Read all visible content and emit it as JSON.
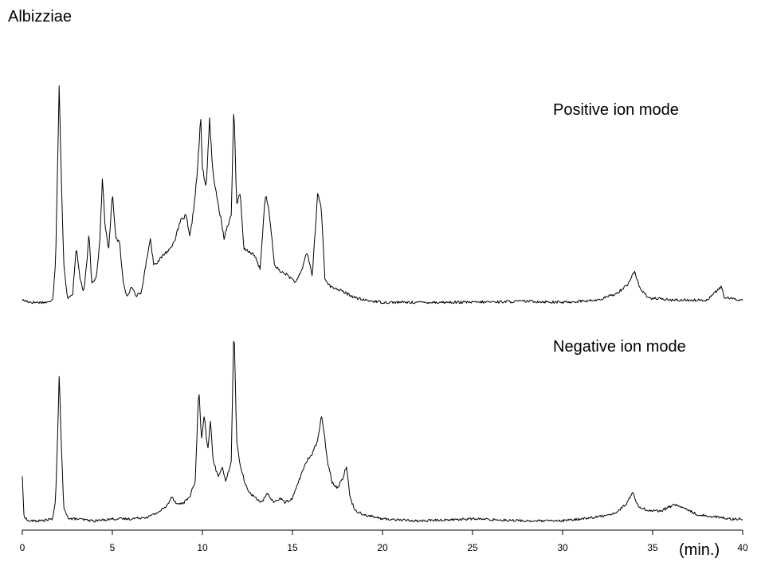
{
  "chart_data": {
    "type": "line",
    "title": "Albizziae",
    "xlabel": "(min.)",
    "ylabel": "",
    "xlim": [
      0,
      40
    ],
    "x_ticks": [
      "0",
      "5",
      "10",
      "15",
      "20",
      "25",
      "30",
      "35",
      "40"
    ],
    "grid": false,
    "series": [
      {
        "name": "Positive ion mode",
        "relative_intensity": true,
        "points": [
          [
            0.0,
            0.02
          ],
          [
            0.5,
            0.01
          ],
          [
            1.0,
            0.01
          ],
          [
            1.5,
            0.01
          ],
          [
            1.7,
            0.03
          ],
          [
            1.85,
            0.2
          ],
          [
            1.95,
            0.6
          ],
          [
            2.05,
            1.0
          ],
          [
            2.15,
            0.62
          ],
          [
            2.3,
            0.18
          ],
          [
            2.5,
            0.03
          ],
          [
            2.8,
            0.05
          ],
          [
            3.0,
            0.26
          ],
          [
            3.2,
            0.12
          ],
          [
            3.4,
            0.05
          ],
          [
            3.6,
            0.2
          ],
          [
            3.7,
            0.33
          ],
          [
            3.85,
            0.1
          ],
          [
            4.1,
            0.12
          ],
          [
            4.3,
            0.28
          ],
          [
            4.45,
            0.57
          ],
          [
            4.6,
            0.35
          ],
          [
            4.8,
            0.25
          ],
          [
            5.0,
            0.5
          ],
          [
            5.2,
            0.3
          ],
          [
            5.4,
            0.28
          ],
          [
            5.6,
            0.1
          ],
          [
            5.8,
            0.04
          ],
          [
            6.1,
            0.08
          ],
          [
            6.3,
            0.04
          ],
          [
            6.6,
            0.05
          ],
          [
            6.9,
            0.2
          ],
          [
            7.1,
            0.3
          ],
          [
            7.3,
            0.18
          ],
          [
            7.6,
            0.2
          ],
          [
            7.9,
            0.23
          ],
          [
            8.2,
            0.25
          ],
          [
            8.5,
            0.3
          ],
          [
            8.8,
            0.38
          ],
          [
            9.1,
            0.4
          ],
          [
            9.3,
            0.3
          ],
          [
            9.5,
            0.42
          ],
          [
            9.7,
            0.58
          ],
          [
            9.8,
            0.7
          ],
          [
            9.9,
            0.85
          ],
          [
            10.0,
            0.62
          ],
          [
            10.2,
            0.52
          ],
          [
            10.4,
            0.84
          ],
          [
            10.55,
            0.62
          ],
          [
            10.8,
            0.48
          ],
          [
            11.0,
            0.4
          ],
          [
            11.2,
            0.3
          ],
          [
            11.4,
            0.36
          ],
          [
            11.6,
            0.4
          ],
          [
            11.75,
            0.91
          ],
          [
            11.9,
            0.45
          ],
          [
            12.1,
            0.5
          ],
          [
            12.3,
            0.25
          ],
          [
            12.6,
            0.24
          ],
          [
            12.9,
            0.22
          ],
          [
            13.2,
            0.16
          ],
          [
            13.5,
            0.5
          ],
          [
            13.7,
            0.42
          ],
          [
            14.0,
            0.18
          ],
          [
            14.3,
            0.15
          ],
          [
            14.6,
            0.14
          ],
          [
            14.9,
            0.12
          ],
          [
            15.2,
            0.1
          ],
          [
            15.5,
            0.15
          ],
          [
            15.8,
            0.24
          ],
          [
            16.1,
            0.13
          ],
          [
            16.4,
            0.5
          ],
          [
            16.6,
            0.44
          ],
          [
            16.8,
            0.12
          ],
          [
            17.1,
            0.08
          ],
          [
            17.5,
            0.07
          ],
          [
            18.0,
            0.05
          ],
          [
            18.5,
            0.03
          ],
          [
            19.0,
            0.02
          ],
          [
            20.0,
            0.01
          ],
          [
            22.0,
            0.01
          ],
          [
            25.0,
            0.01
          ],
          [
            28.0,
            0.015
          ],
          [
            30.0,
            0.01
          ],
          [
            32.0,
            0.02
          ],
          [
            33.0,
            0.05
          ],
          [
            33.6,
            0.09
          ],
          [
            34.0,
            0.15
          ],
          [
            34.3,
            0.07
          ],
          [
            34.8,
            0.03
          ],
          [
            36.0,
            0.02
          ],
          [
            37.0,
            0.02
          ],
          [
            38.0,
            0.02
          ],
          [
            38.8,
            0.08
          ],
          [
            39.0,
            0.03
          ],
          [
            40.0,
            0.02
          ]
        ]
      },
      {
        "name": "Negative ion mode",
        "relative_intensity": true,
        "points": [
          [
            0.0,
            0.23
          ],
          [
            0.08,
            0.04
          ],
          [
            0.3,
            0.01
          ],
          [
            1.0,
            0.01
          ],
          [
            1.7,
            0.02
          ],
          [
            1.85,
            0.12
          ],
          [
            1.95,
            0.4
          ],
          [
            2.05,
            0.72
          ],
          [
            2.15,
            0.42
          ],
          [
            2.3,
            0.07
          ],
          [
            2.6,
            0.02
          ],
          [
            3.0,
            0.02
          ],
          [
            4.0,
            0.01
          ],
          [
            5.0,
            0.02
          ],
          [
            6.0,
            0.02
          ],
          [
            7.0,
            0.03
          ],
          [
            7.5,
            0.05
          ],
          [
            8.0,
            0.08
          ],
          [
            8.3,
            0.13
          ],
          [
            8.6,
            0.09
          ],
          [
            9.0,
            0.1
          ],
          [
            9.3,
            0.13
          ],
          [
            9.6,
            0.2
          ],
          [
            9.8,
            0.66
          ],
          [
            9.95,
            0.4
          ],
          [
            10.1,
            0.52
          ],
          [
            10.3,
            0.35
          ],
          [
            10.45,
            0.5
          ],
          [
            10.6,
            0.3
          ],
          [
            10.9,
            0.22
          ],
          [
            11.1,
            0.28
          ],
          [
            11.3,
            0.2
          ],
          [
            11.6,
            0.3
          ],
          [
            11.75,
            0.97
          ],
          [
            11.9,
            0.4
          ],
          [
            12.1,
            0.28
          ],
          [
            12.4,
            0.18
          ],
          [
            12.7,
            0.14
          ],
          [
            13.0,
            0.12
          ],
          [
            13.3,
            0.1
          ],
          [
            13.6,
            0.14
          ],
          [
            14.0,
            0.1
          ],
          [
            14.3,
            0.12
          ],
          [
            14.6,
            0.1
          ],
          [
            15.0,
            0.12
          ],
          [
            15.5,
            0.24
          ],
          [
            15.8,
            0.3
          ],
          [
            16.1,
            0.34
          ],
          [
            16.4,
            0.4
          ],
          [
            16.6,
            0.52
          ],
          [
            16.75,
            0.44
          ],
          [
            16.95,
            0.3
          ],
          [
            17.2,
            0.2
          ],
          [
            17.5,
            0.17
          ],
          [
            17.8,
            0.22
          ],
          [
            18.0,
            0.28
          ],
          [
            18.2,
            0.12
          ],
          [
            18.5,
            0.06
          ],
          [
            19.0,
            0.04
          ],
          [
            20.0,
            0.02
          ],
          [
            22.0,
            0.01
          ],
          [
            25.0,
            0.02
          ],
          [
            28.0,
            0.01
          ],
          [
            30.0,
            0.01
          ],
          [
            31.0,
            0.02
          ],
          [
            32.0,
            0.03
          ],
          [
            33.0,
            0.05
          ],
          [
            33.6,
            0.1
          ],
          [
            33.9,
            0.15
          ],
          [
            34.2,
            0.08
          ],
          [
            34.8,
            0.06
          ],
          [
            35.5,
            0.06
          ],
          [
            36.2,
            0.09
          ],
          [
            36.8,
            0.07
          ],
          [
            37.5,
            0.04
          ],
          [
            38.5,
            0.03
          ],
          [
            39.3,
            0.02
          ],
          [
            40.0,
            0.02
          ]
        ]
      }
    ]
  }
}
